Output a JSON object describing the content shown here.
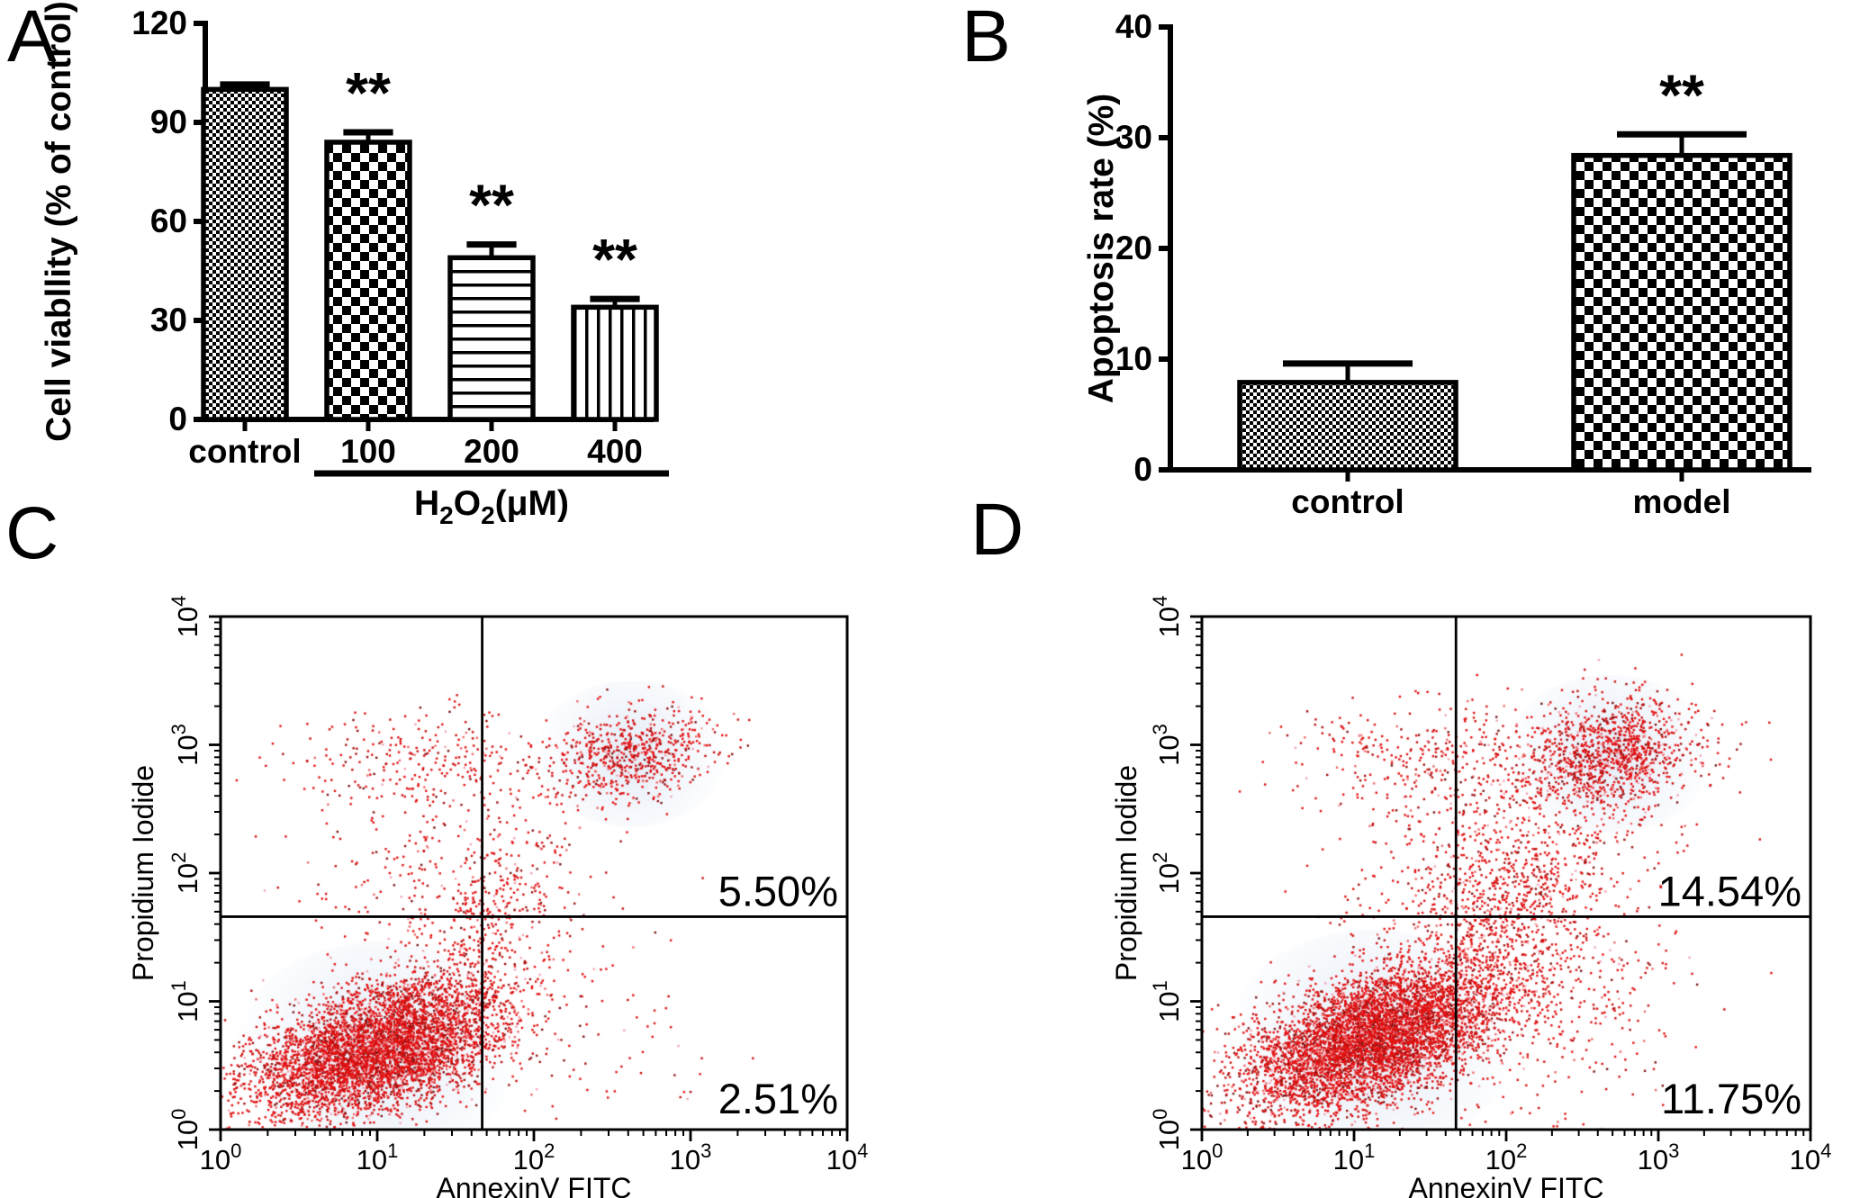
{
  "figure": {
    "background": "#ffffff"
  },
  "chart_data": [
    {
      "id": "A",
      "letter": "A",
      "type": "bar",
      "ylabel": "Cell viabllity (% of control)",
      "ylim": [
        0,
        120
      ],
      "yticks": [
        0,
        30,
        60,
        90,
        120
      ],
      "categories": [
        "control",
        "100",
        "200",
        "400"
      ],
      "values": [
        100,
        84,
        49,
        34
      ],
      "errors_plus": [
        1.5,
        3,
        4,
        2.5
      ],
      "significance": [
        "",
        "**",
        "**",
        "**"
      ],
      "bar_patterns": [
        "checker-fine",
        "checker-coarse",
        "hlines",
        "vlines"
      ],
      "group_label": {
        "text": "H2O2(μM)",
        "parts": [
          {
            "t": "H"
          },
          {
            "t": "2",
            "sub": true
          },
          {
            "t": "O"
          },
          {
            "t": "2",
            "sub": true
          },
          {
            "t": "(μM)"
          }
        ],
        "from_category": 1,
        "to_category": 3
      }
    },
    {
      "id": "B",
      "letter": "B",
      "type": "bar",
      "ylabel": "Apoptosis rate (%)",
      "ylim": [
        0,
        40
      ],
      "yticks": [
        0,
        10,
        20,
        30,
        40
      ],
      "categories": [
        "control",
        "model"
      ],
      "values": [
        7.9,
        28.4
      ],
      "errors_plus": [
        1.7,
        1.9
      ],
      "significance": [
        "",
        "**"
      ],
      "bar_patterns": [
        "checker-fine",
        "checker-coarse"
      ]
    },
    {
      "id": "C",
      "letter": "C",
      "type": "scatter",
      "xlabel": "AnnexinV FITC",
      "ylabel": "Propidium Iodide",
      "x_log_range": [
        0,
        4
      ],
      "y_log_range": [
        0,
        4
      ],
      "tick_exponents": [
        0,
        1,
        2,
        3,
        4
      ],
      "grid": false,
      "quadrant": {
        "x_log": 1.67,
        "y_log": 1.66
      },
      "quadrant_labels": [
        {
          "text": "5.50%",
          "position": "right-above-hline"
        },
        {
          "text": "2.51%",
          "position": "right-bottom"
        }
      ],
      "seed": 1234,
      "clusters": [
        {
          "name": "live-main",
          "n": 5200,
          "cx": 1.0,
          "cy": 0.62,
          "sx": 0.4,
          "sy": 0.27,
          "corr": 0.45,
          "smudge": true
        },
        {
          "name": "bridge",
          "n": 380,
          "cx": 1.75,
          "cy": 1.5,
          "sx": 0.25,
          "sy": 0.45,
          "corr": 0.35
        },
        {
          "name": "late-apoptotic",
          "n": 650,
          "cx": 2.62,
          "cy": 2.93,
          "sx": 0.27,
          "sy": 0.18,
          "corr": 0.15,
          "smudge": true
        },
        {
          "name": "upper-band",
          "n": 260,
          "cx": 1.3,
          "cy": 2.88,
          "sx": 0.45,
          "sy": 0.2,
          "corr": 0
        },
        {
          "name": "mid-scatter",
          "n": 300,
          "cx": 1.45,
          "cy": 2.05,
          "sx": 0.5,
          "sy": 0.42,
          "corr": 0.1
        },
        {
          "name": "lower-right",
          "n": 70,
          "cx": 2.35,
          "cy": 0.75,
          "sx": 0.4,
          "sy": 0.35,
          "corr": 0
        }
      ]
    },
    {
      "id": "D",
      "letter": "D",
      "type": "scatter",
      "xlabel": "AnnexinV FITC",
      "ylabel": "Propidium Iodide",
      "x_log_range": [
        0,
        4
      ],
      "y_log_range": [
        0,
        4
      ],
      "tick_exponents": [
        0,
        1,
        2,
        3,
        4
      ],
      "grid": false,
      "quadrant": {
        "x_log": 1.67,
        "y_log": 1.66
      },
      "quadrant_labels": [
        {
          "text": "14.54%",
          "position": "right-above-hline"
        },
        {
          "text": "11.75%",
          "position": "right-bottom"
        }
      ],
      "seed": 5678,
      "clusters": [
        {
          "name": "live-main",
          "n": 5600,
          "cx": 1.12,
          "cy": 0.7,
          "sx": 0.42,
          "sy": 0.28,
          "corr": 0.5,
          "smudge": true
        },
        {
          "name": "bridge",
          "n": 900,
          "cx": 1.95,
          "cy": 1.6,
          "sx": 0.38,
          "sy": 0.5,
          "corr": 0.55
        },
        {
          "name": "late-apoptotic",
          "n": 1150,
          "cx": 2.68,
          "cy": 2.93,
          "sx": 0.3,
          "sy": 0.22,
          "corr": 0.2,
          "smudge": true
        },
        {
          "name": "upper-band",
          "n": 300,
          "cx": 1.45,
          "cy": 2.9,
          "sx": 0.42,
          "sy": 0.2,
          "corr": 0
        },
        {
          "name": "mid-scatter",
          "n": 500,
          "cx": 1.85,
          "cy": 2.1,
          "sx": 0.5,
          "sy": 0.45,
          "corr": 0.15
        },
        {
          "name": "lower-right",
          "n": 280,
          "cx": 2.45,
          "cy": 0.95,
          "sx": 0.42,
          "sy": 0.4,
          "corr": 0.1
        }
      ]
    }
  ],
  "colors": {
    "ink": "#000000",
    "smudge": "#dce5f3",
    "dot_palette": [
      {
        "hex": "#e31112",
        "w": 0.58
      },
      {
        "hex": "#cb0e0e",
        "w": 0.16
      },
      {
        "hex": "#a01212",
        "w": 0.09
      },
      {
        "hex": "#7c1414",
        "w": 0.05
      },
      {
        "hex": "#ef6a6a",
        "w": 0.07
      },
      {
        "hex": "#f2a6b4",
        "w": 0.05
      }
    ]
  }
}
